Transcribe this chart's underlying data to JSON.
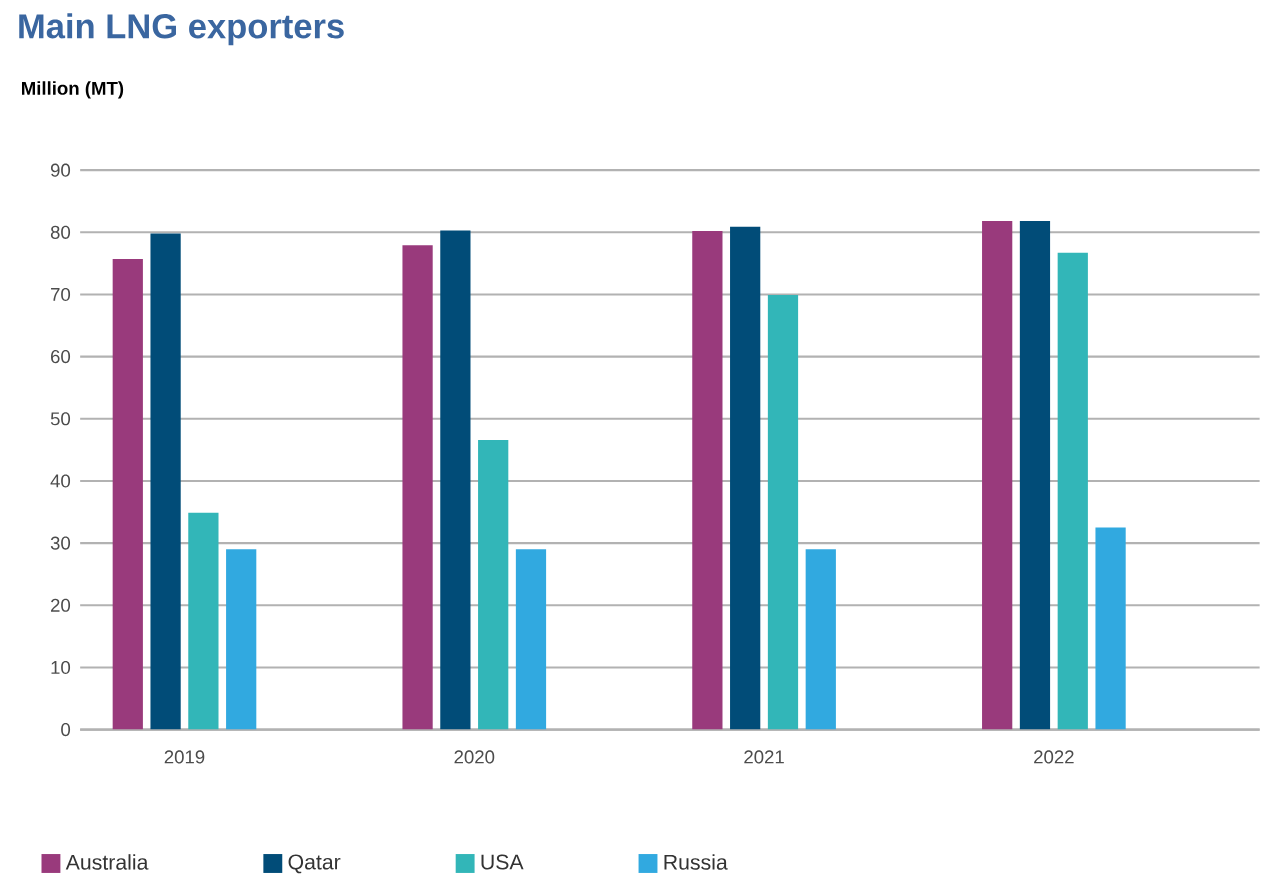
{
  "chart_data": {
    "type": "bar",
    "title": "Main LNG exporters",
    "subtitle": "Million (MT)",
    "categories": [
      "2019",
      "2020",
      "2021",
      "2022"
    ],
    "series": [
      {
        "name": "Australia",
        "color": "#993a7c",
        "values": [
          75.7,
          77.9,
          80.2,
          81.8
        ]
      },
      {
        "name": "Qatar",
        "color": "#014c78",
        "values": [
          79.8,
          80.3,
          80.9,
          81.8
        ]
      },
      {
        "name": "USA",
        "color": "#32b6b8",
        "values": [
          34.9,
          46.6,
          69.9,
          76.7
        ]
      },
      {
        "name": "Russia",
        "color": "#31a9e0",
        "values": [
          29,
          29,
          29,
          32.5
        ]
      }
    ],
    "ylim": [
      0,
      90
    ],
    "yticks": [
      0,
      10,
      20,
      30,
      40,
      50,
      60,
      70,
      80,
      90
    ],
    "grid": "y",
    "legend": "bottom"
  }
}
